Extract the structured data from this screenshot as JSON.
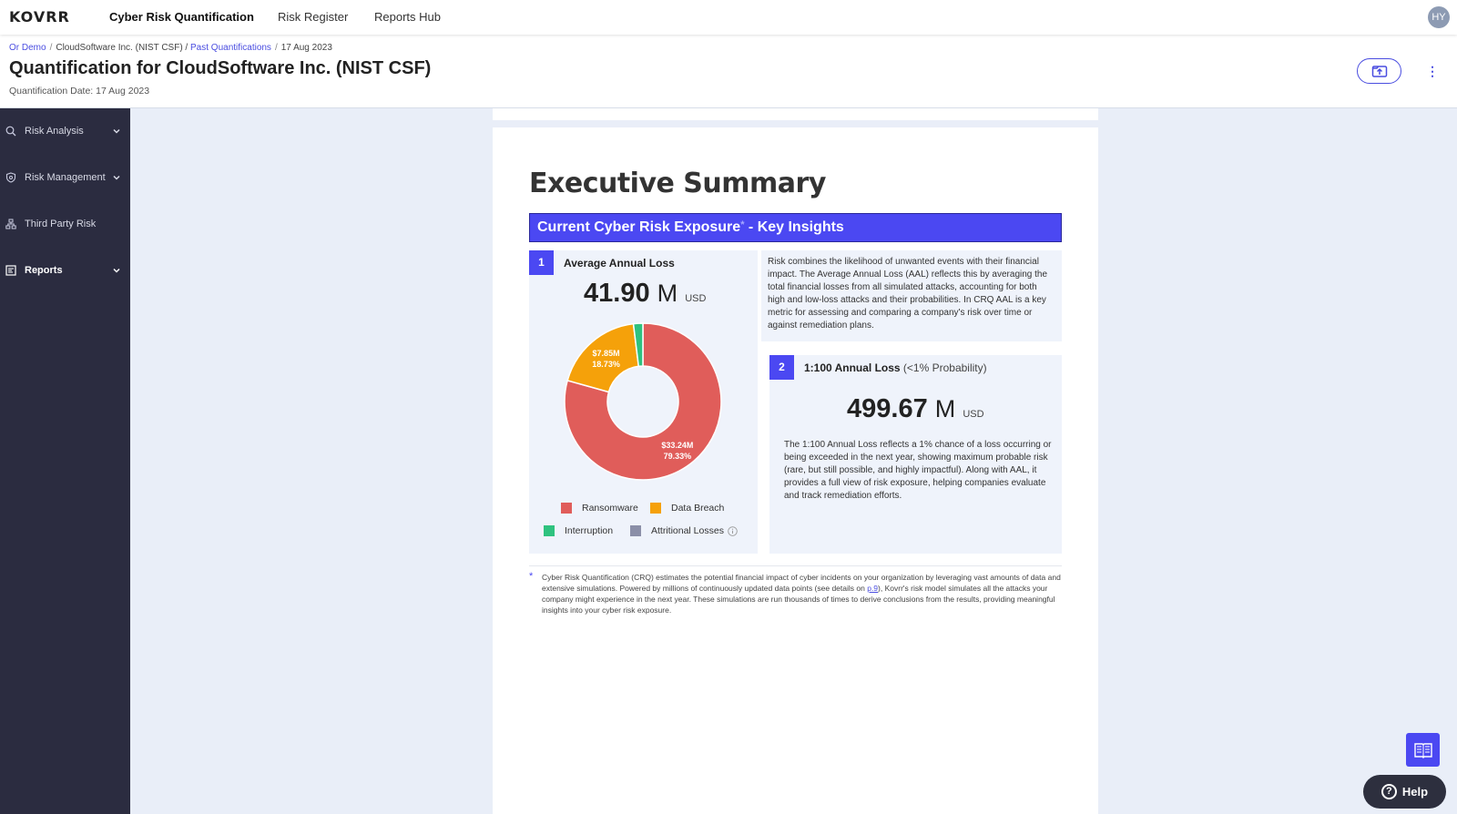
{
  "app": {
    "logo": "KOVRR",
    "nav": [
      "Cyber Risk Quantification",
      "Risk Register",
      "Reports Hub"
    ],
    "avatar_initials": "HY"
  },
  "header": {
    "breadcrumb": {
      "org": "Or Demo",
      "company": "CloudSoftware Inc. (NIST CSF)",
      "past": "Past Quantifications",
      "date": "17 Aug 2023"
    },
    "title": "Quantification for CloudSoftware Inc. (NIST CSF)",
    "subtitle": "Quantification Date: 17 Aug 2023"
  },
  "sidebar": {
    "items": [
      {
        "label": "Risk Analysis",
        "icon": "search-chart-icon"
      },
      {
        "label": "Risk Management",
        "icon": "shield-icon"
      },
      {
        "label": "Third Party Risk",
        "icon": "network-icon"
      },
      {
        "label": "Reports",
        "icon": "report-icon"
      }
    ]
  },
  "report": {
    "title": "Executive Summary",
    "banner": "Current Cyber Risk Exposure",
    "banner_star": "*",
    "banner_suffix": " - Key Insights",
    "aal": {
      "number": "1",
      "title": "Average Annual Loss",
      "value": "41.90",
      "unit": "M",
      "currency": "USD",
      "description": "Risk combines the likelihood of unwanted events with their financial impact. The Average Annual Loss (AAL) reflects this by averaging the total financial losses from all simulated attacks, accounting for both high and low-loss attacks and their probabilities. In CRQ AAL is a key metric for assessing and comparing a company's risk over time or against remediation plans."
    },
    "loss100": {
      "number": "2",
      "title": "1:100 Annual Loss",
      "title_suffix": " (<1% Probability)",
      "value": "499.67",
      "unit": "M",
      "currency": "USD",
      "description": "The 1:100 Annual Loss reflects a 1% chance of a loss occurring or being exceeded in the next year, showing maximum probable risk (rare, but still possible, and highly impactful). Along with AAL, it provides a full view of risk exposure, helping companies evaluate and track remediation efforts."
    },
    "footnote": {
      "star": "*",
      "text_before": "Cyber Risk Quantification (CRQ) estimates the potential financial impact of cyber incidents on your organization by leveraging vast amounts of data and extensive simulations. Powered by millions of continuously updated data points (see details on ",
      "link": "p.9",
      "text_after": "), Kovrr's risk model simulates all the attacks your company might experience in the next year. These simulations are run thousands of times to derive conclusions from the results, providing meaningful insights into your cyber risk exposure."
    }
  },
  "chart_data": {
    "type": "pie",
    "donut": true,
    "categories": [
      "Ransomware",
      "Data Breach",
      "Interruption",
      "Attritional Losses"
    ],
    "values": [
      79.33,
      18.73,
      1.94,
      0
    ],
    "unit": "%",
    "labels": [
      {
        "category": "Ransomware",
        "amount": "$33.24M",
        "percent": "79.33%"
      },
      {
        "category": "Data Breach",
        "amount": "$7.85M",
        "percent": "18.73%"
      }
    ],
    "colors": [
      "#e05d5a",
      "#f5a10a",
      "#2fc27f",
      "#8b8fa8"
    ],
    "legend_position": "bottom"
  },
  "colors": {
    "accent": "#4b48f2",
    "sidebar_bg": "#2b2c40"
  }
}
